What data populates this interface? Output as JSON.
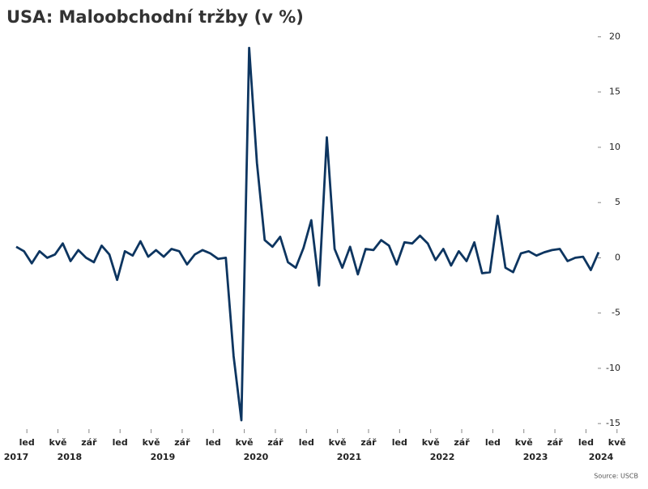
{
  "chart_data": {
    "type": "line",
    "title": "USA: Maloobchodní tržby (v %)",
    "source": "Source: USCB",
    "x": [
      "2017-11",
      "2017-12",
      "2018-01",
      "2018-02",
      "2018-03",
      "2018-04",
      "2018-05",
      "2018-06",
      "2018-07",
      "2018-08",
      "2018-09",
      "2018-10",
      "2018-11",
      "2018-12",
      "2019-01",
      "2019-02",
      "2019-03",
      "2019-04",
      "2019-05",
      "2019-06",
      "2019-07",
      "2019-08",
      "2019-09",
      "2019-10",
      "2019-11",
      "2019-12",
      "2020-01",
      "2020-02",
      "2020-03",
      "2020-04",
      "2020-05",
      "2020-06",
      "2020-07",
      "2020-08",
      "2020-09",
      "2020-10",
      "2020-11",
      "2020-12",
      "2021-01",
      "2021-02",
      "2021-03",
      "2021-04",
      "2021-05",
      "2021-06",
      "2021-07",
      "2021-08",
      "2021-09",
      "2021-10",
      "2021-11",
      "2021-12",
      "2022-01",
      "2022-02",
      "2022-03",
      "2022-04",
      "2022-05",
      "2022-06",
      "2022-07",
      "2022-08",
      "2022-09",
      "2022-10",
      "2022-11",
      "2022-12",
      "2023-01",
      "2023-02",
      "2023-03",
      "2023-04",
      "2023-05",
      "2023-06",
      "2023-07",
      "2023-08",
      "2023-09",
      "2023-10",
      "2023-11",
      "2023-12",
      "2024-01",
      "2024-02"
    ],
    "series": [
      {
        "name": "Maloobchodní tržby",
        "color": "#0d3560",
        "values": [
          1.0,
          0.6,
          -0.5,
          0.6,
          0.0,
          0.3,
          1.3,
          -0.3,
          0.7,
          0.0,
          -0.4,
          1.1,
          0.3,
          -2.0,
          0.6,
          0.2,
          1.5,
          0.1,
          0.7,
          0.1,
          0.8,
          0.6,
          -0.6,
          0.3,
          0.7,
          0.4,
          -0.1,
          0.0,
          -8.9,
          -14.7,
          19.0,
          8.6,
          1.6,
          1.0,
          1.9,
          -0.4,
          -0.9,
          0.9,
          3.4,
          -2.5,
          10.9,
          0.8,
          -0.9,
          1.0,
          -1.5,
          0.8,
          0.7,
          1.6,
          1.1,
          -0.6,
          1.4,
          1.3,
          2.0,
          1.3,
          -0.2,
          0.8,
          -0.7,
          0.6,
          -0.3,
          1.4,
          -1.4,
          -1.3,
          3.8,
          -0.9,
          -1.3,
          0.4,
          0.6,
          0.2,
          0.5,
          0.7,
          0.8,
          -0.3,
          0.0,
          0.1,
          -1.1,
          0.5
        ]
      }
    ],
    "xticks": [
      {
        "value": "2018-01",
        "label": "led"
      },
      {
        "value": "2018-05",
        "label": "kvě"
      },
      {
        "value": "2018-09",
        "label": "zář"
      },
      {
        "value": "2019-01",
        "label": "led"
      },
      {
        "value": "2019-05",
        "label": "kvě"
      },
      {
        "value": "2019-09",
        "label": "zář"
      },
      {
        "value": "2020-01",
        "label": "led"
      },
      {
        "value": "2020-05",
        "label": "kvě"
      },
      {
        "value": "2020-09",
        "label": "zář"
      },
      {
        "value": "2021-01",
        "label": "led"
      },
      {
        "value": "2021-05",
        "label": "kvě"
      },
      {
        "value": "2021-09",
        "label": "zář"
      },
      {
        "value": "2022-01",
        "label": "led"
      },
      {
        "value": "2022-05",
        "label": "kvě"
      },
      {
        "value": "2022-09",
        "label": "zář"
      },
      {
        "value": "2023-01",
        "label": "led"
      },
      {
        "value": "2023-05",
        "label": "kvě"
      },
      {
        "value": "2023-09",
        "label": "zář"
      },
      {
        "value": "2024-01",
        "label": "led"
      },
      {
        "value": "2024-05",
        "label": "kvě"
      }
    ],
    "year_labels": [
      "2017",
      "2018",
      "2019",
      "2020",
      "2021",
      "2022",
      "2023",
      "2024"
    ],
    "ylim": [
      -15.5,
      20.4
    ],
    "yticks": [
      -15,
      -10,
      -5,
      0,
      5,
      10,
      15,
      20
    ],
    "y_axis_side": "right"
  }
}
